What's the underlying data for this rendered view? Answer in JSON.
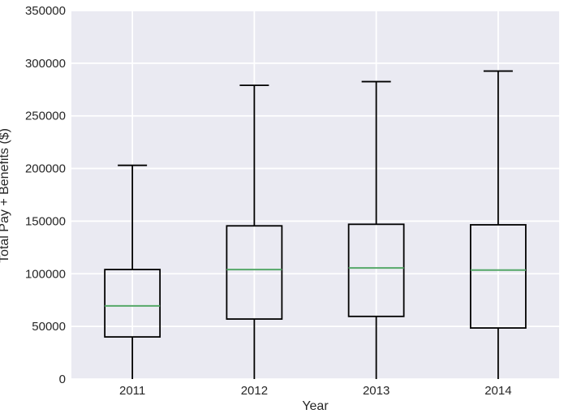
{
  "chart_data": {
    "type": "boxplot",
    "title": "",
    "xlabel": "Year",
    "ylabel": "Total Pay + Benefits ($)",
    "categories": [
      "2011",
      "2012",
      "2013",
      "2014"
    ],
    "series": [
      {
        "category": "2011",
        "whisker_low": 0,
        "q1": 40000,
        "median": 69500,
        "q3": 104000,
        "whisker_high": 203000
      },
      {
        "category": "2012",
        "whisker_low": 0,
        "q1": 57000,
        "median": 104000,
        "q3": 145500,
        "whisker_high": 279000
      },
      {
        "category": "2013",
        "whisker_low": 0,
        "q1": 59500,
        "median": 105500,
        "q3": 147000,
        "whisker_high": 282500
      },
      {
        "category": "2014",
        "whisker_low": 0,
        "q1": 48500,
        "median": 103500,
        "q3": 146500,
        "whisker_high": 292500
      }
    ],
    "ylim": [
      0,
      350000
    ],
    "ytick_step": 50000,
    "ytick_labels": [
      "0",
      "50000",
      "100000",
      "150000",
      "200000",
      "250000",
      "300000",
      "350000"
    ],
    "grid": true,
    "legend": false,
    "colors": {
      "figure_background": "#ffffff",
      "plot_background": "#eaeaf2",
      "gridline": "#ffffff",
      "box_stroke": "#000000",
      "median_line": "#55a868",
      "text": "#262626"
    }
  }
}
